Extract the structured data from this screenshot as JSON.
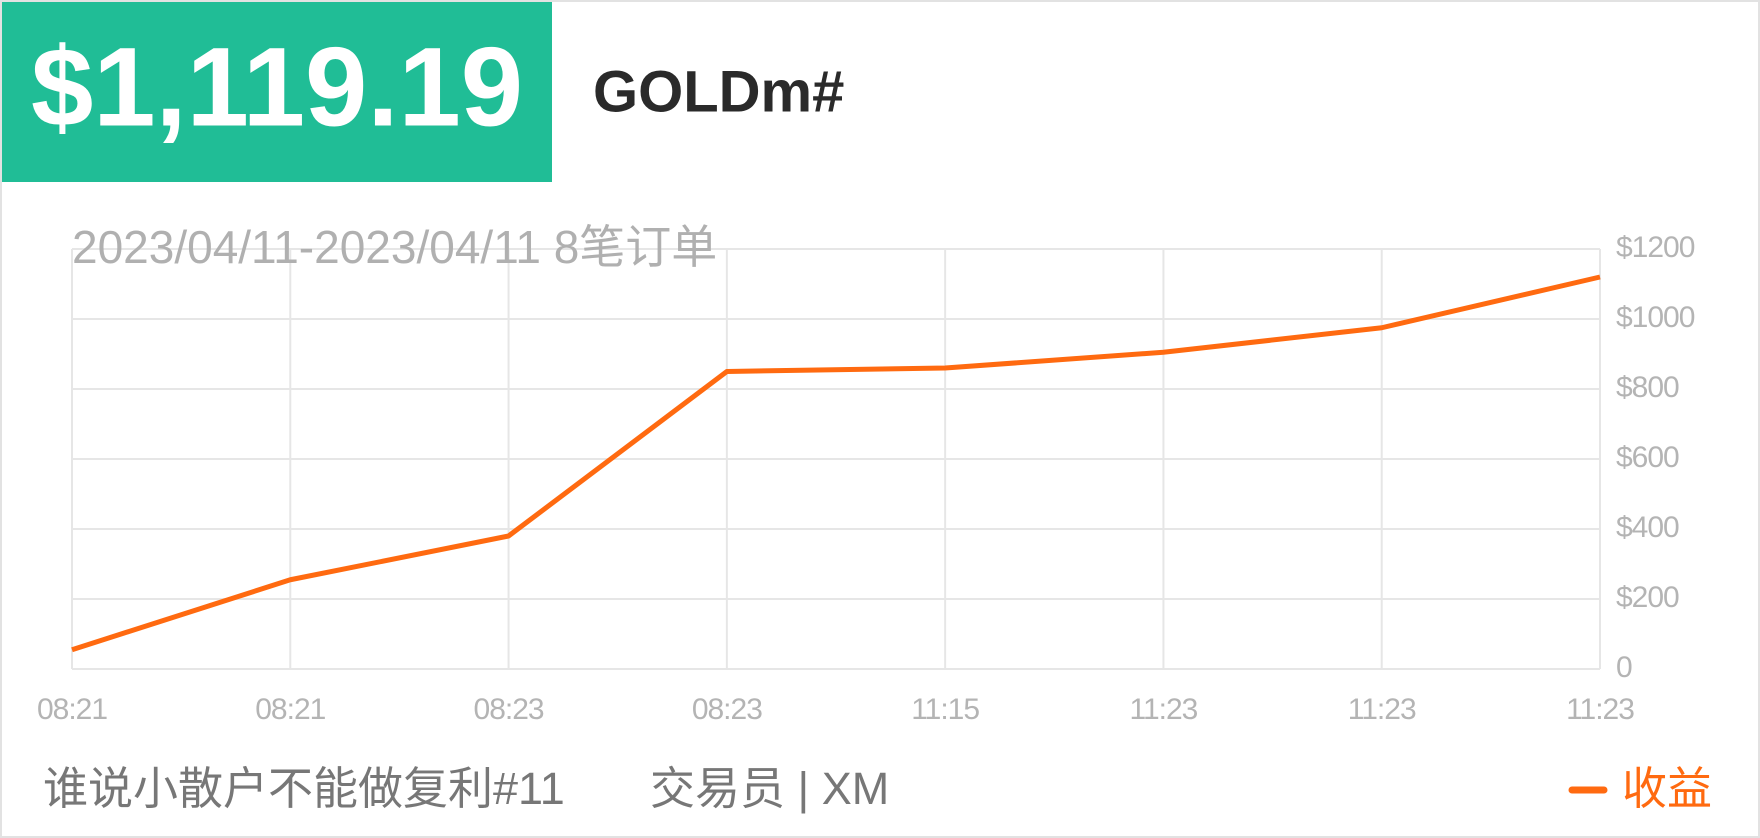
{
  "header": {
    "amount": "$1,119.19",
    "symbol": "GOLDm#"
  },
  "chart_data": {
    "type": "line",
    "title": "2023/04/11-2023/04/11 8笔订单",
    "categories": [
      "08:21",
      "08:21",
      "08:23",
      "08:23",
      "11:15",
      "11:23",
      "11:23",
      "11:23"
    ],
    "series": [
      {
        "name": "收益",
        "color": "#ff6a10",
        "values": [
          55,
          255,
          380,
          850,
          860,
          905,
          975,
          1120
        ]
      }
    ],
    "ylim": [
      0,
      1200
    ],
    "yticks": [
      0,
      {
        "value": 200,
        "label": "$200"
      },
      {
        "value": 400,
        "label": "$400"
      },
      {
        "value": 600,
        "label": "$600"
      },
      {
        "value": 800,
        "label": "$800"
      },
      {
        "value": 1000,
        "label": "$1000"
      },
      {
        "value": 1200,
        "label": "$1200"
      }
    ],
    "grid": true
  },
  "footer": {
    "strategy": "谁说小散户不能做复利#11",
    "trader": "交易员 | XM"
  }
}
